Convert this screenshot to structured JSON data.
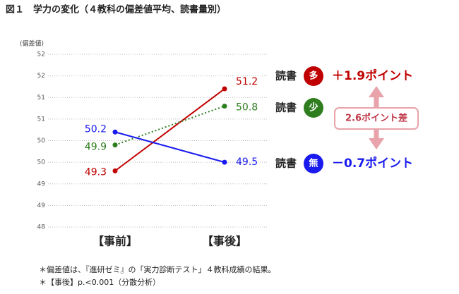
{
  "chart_data": {
    "type": "line",
    "title": "図１　学力の変化（４教科の偏差値平均、読書量別）",
    "y_axis_label": "(偏差値)",
    "categories": [
      "【事前】",
      "【事後】"
    ],
    "ylim": [
      48,
      52
    ],
    "yticks": [
      {
        "value": 48,
        "label": "48"
      },
      {
        "value": 48.5,
        "label": "49"
      },
      {
        "value": 49,
        "label": "49"
      },
      {
        "value": 49.5,
        "label": "50"
      },
      {
        "value": 50,
        "label": "50"
      },
      {
        "value": 50.5,
        "label": "51"
      },
      {
        "value": 51,
        "label": "51"
      },
      {
        "value": 51.5,
        "label": "52"
      },
      {
        "value": 52,
        "label": "52"
      }
    ],
    "grid": true,
    "series": [
      {
        "name": "多",
        "group_label": "読書",
        "difference": "＋1.9ポイント",
        "color": "#c00000",
        "line_style": "solid",
        "values": [
          49.3,
          51.2
        ]
      },
      {
        "name": "少",
        "group_label": "読書",
        "difference": null,
        "color": "#2e7d1e",
        "line_style": "dotted",
        "values": [
          49.9,
          50.8
        ]
      },
      {
        "name": "無",
        "group_label": "読書",
        "difference": "－0.7ポイント",
        "color": "#1a1aee",
        "line_style": "solid",
        "values": [
          50.2,
          49.5
        ]
      }
    ],
    "annotation": "2.6ポイント差",
    "notes": [
      "＊偏差値は、『進研ゼミ』の「実力診断テスト」４教科成績の結果。",
      "＊【事後】p.<0.001（分散分析）"
    ]
  }
}
